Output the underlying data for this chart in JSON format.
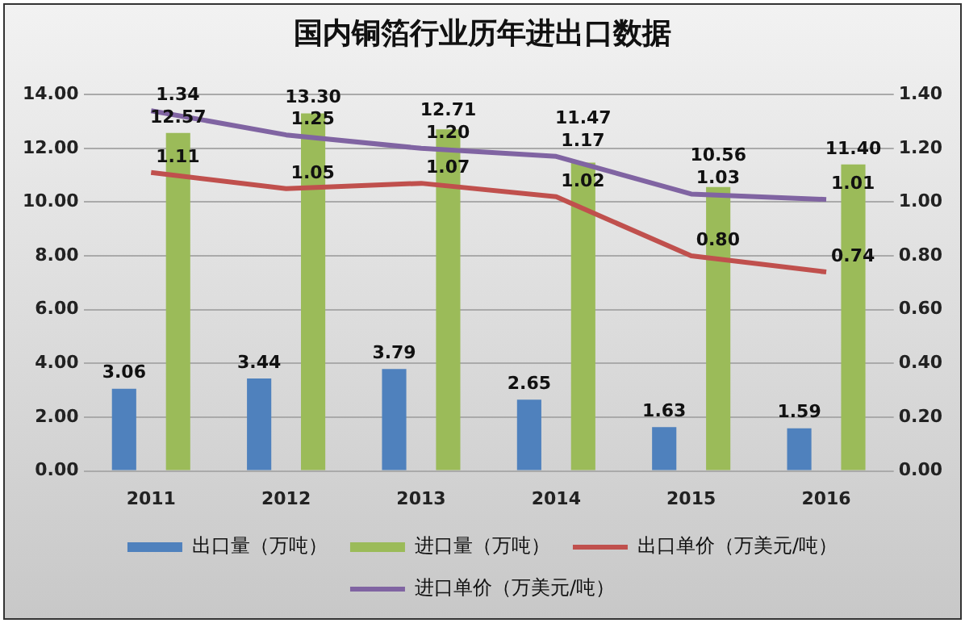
{
  "chart_data": {
    "type": "bar",
    "title": "国内铜箔行业历年进出口数据",
    "categories": [
      "2011",
      "2012",
      "2013",
      "2014",
      "2015",
      "2016"
    ],
    "series": [
      {
        "name": "出口量（万吨）",
        "color": "#4f81bd",
        "values": [
          3.06,
          3.44,
          3.79,
          2.65,
          1.63,
          1.59
        ],
        "value_labels": [
          "3.06",
          "3.44",
          "3.79",
          "2.65",
          "1.63",
          "1.59"
        ]
      },
      {
        "name": "进口量（万吨）",
        "color": "#9bbb59",
        "values": [
          12.57,
          13.3,
          12.71,
          11.47,
          10.56,
          11.4
        ],
        "value_labels": [
          "12.57",
          "13.30",
          "12.71",
          "11.47",
          "10.56",
          "11.40"
        ]
      },
      {
        "name": "出口单价（万美元/吨）",
        "type": "line",
        "axis": "y2",
        "color": "#c0504d",
        "values": [
          1.11,
          1.05,
          1.07,
          1.02,
          0.8,
          0.74
        ],
        "value_labels": [
          "1.11",
          "1.05",
          "1.07",
          "1.02",
          "0.80",
          "0.74"
        ]
      },
      {
        "name": "进口单价（万美元/吨）",
        "type": "line",
        "axis": "y2",
        "color": "#8064a2",
        "values": [
          1.34,
          1.25,
          1.2,
          1.17,
          1.03,
          1.01
        ],
        "value_labels": [
          "1.34",
          "1.25",
          "1.20",
          "1.17",
          "1.03",
          "1.01"
        ]
      }
    ],
    "ylim": [
      0,
      14
    ],
    "yticks": [
      {
        "value": 0,
        "label": "0.00"
      },
      {
        "value": 2,
        "label": "2.00"
      },
      {
        "value": 4,
        "label": "4.00"
      },
      {
        "value": 6,
        "label": "6.00"
      },
      {
        "value": 8,
        "label": "8.00"
      },
      {
        "value": 10,
        "label": "10.00"
      },
      {
        "value": 12,
        "label": "12.00"
      },
      {
        "value": 14,
        "label": "14.00"
      }
    ],
    "y2lim": [
      0,
      1.4
    ],
    "y2ticks": [
      {
        "value": 0,
        "label": "0.00"
      },
      {
        "value": 0.2,
        "label": "0.20"
      },
      {
        "value": 0.4,
        "label": "0.40"
      },
      {
        "value": 0.6,
        "label": "0.60"
      },
      {
        "value": 0.8,
        "label": "0.80"
      },
      {
        "value": 1,
        "label": "1.00"
      },
      {
        "value": 1.2,
        "label": "1.20"
      },
      {
        "value": 1.4,
        "label": "1.40"
      }
    ],
    "grid": "y",
    "legend": "bottom",
    "marker": "none",
    "line_style": "solid"
  }
}
